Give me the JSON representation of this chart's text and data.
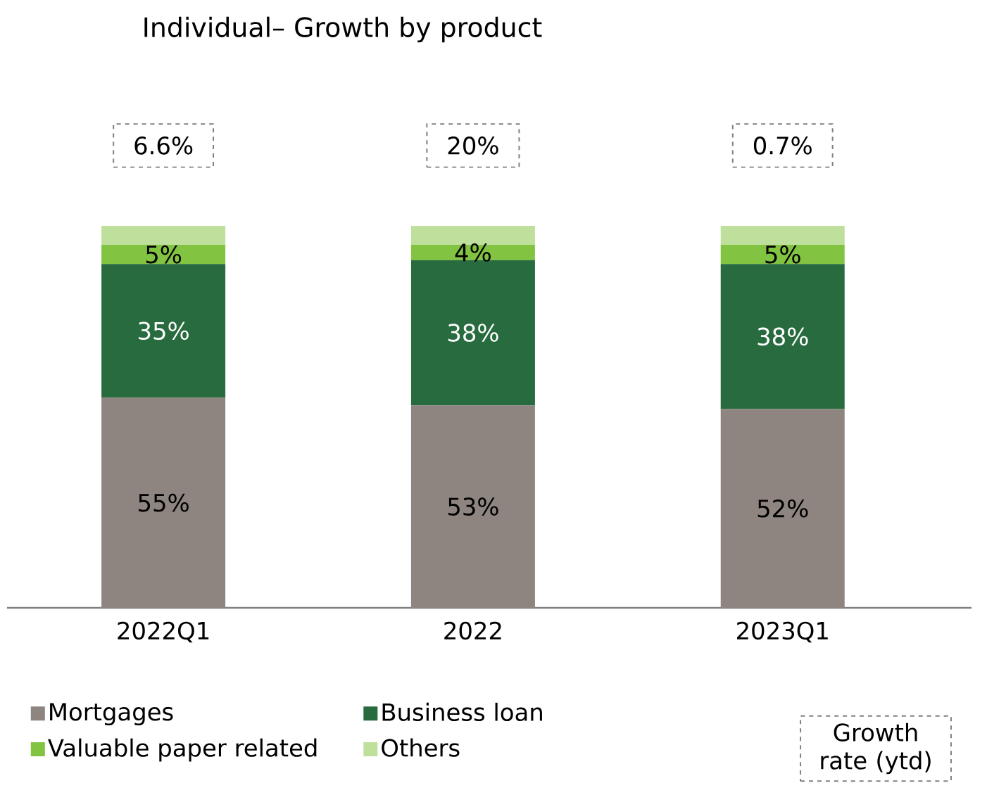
{
  "chart_data": {
    "type": "bar",
    "title": "Individual– Growth by product",
    "stacked": true,
    "categories": [
      "2022Q1",
      "2022",
      "2023Q1"
    ],
    "series": [
      {
        "name": "Mortgages",
        "color": "#8f8580",
        "values": [
          55,
          53,
          52
        ],
        "value_labels": [
          "55%",
          "53%",
          "52%"
        ]
      },
      {
        "name": "Business loan",
        "color": "#276b3e",
        "values": [
          35,
          38,
          38
        ],
        "value_labels": [
          "35%",
          "38%",
          "38%"
        ]
      },
      {
        "name": "Valuable paper related",
        "color": "#82c341",
        "values": [
          5,
          4,
          5
        ],
        "value_labels": [
          "5%",
          "4%",
          "5%"
        ]
      },
      {
        "name": "Others",
        "color": "#bfe09c",
        "values": [
          5,
          5,
          5
        ]
      }
    ],
    "annotations": [
      "6.6%",
      "20%",
      "0.7%",
      "Growth rate (ytd)"
    ],
    "legend": "bottom"
  }
}
